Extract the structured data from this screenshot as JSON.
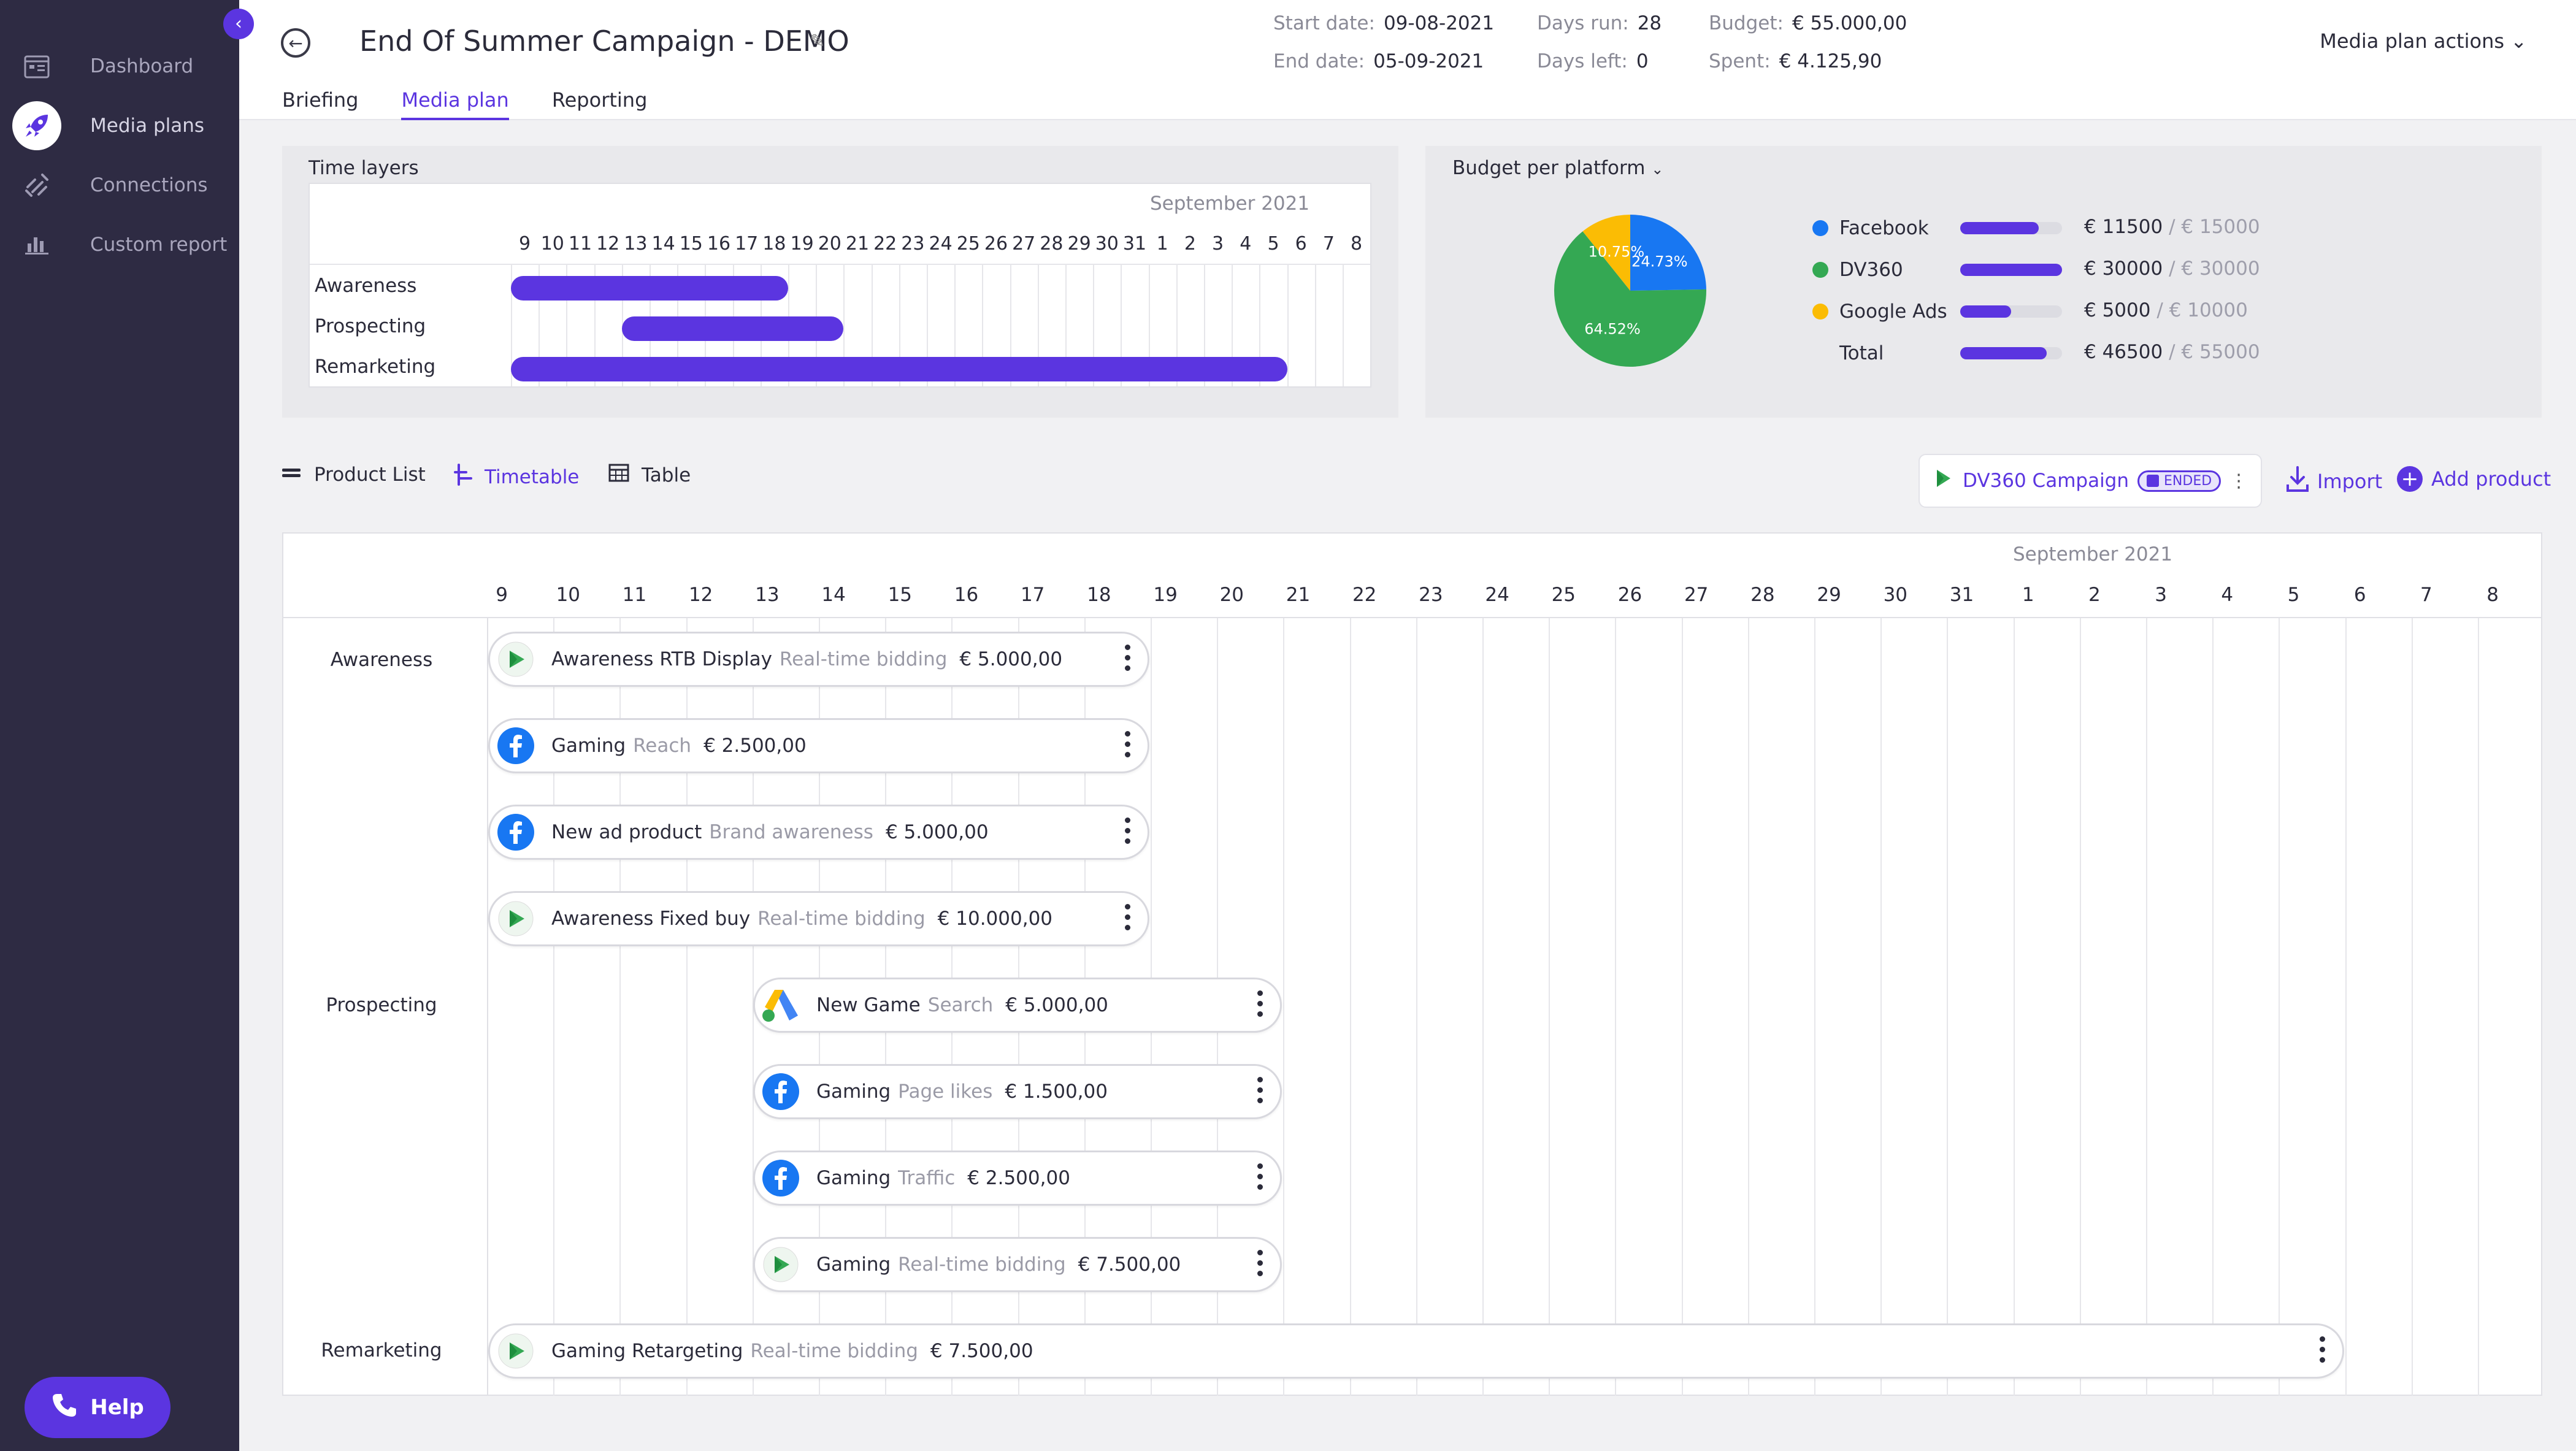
{
  "sidebar": {
    "items": [
      {
        "label": "Dashboard",
        "icon": "dashboard-icon"
      },
      {
        "label": "Media plans",
        "icon": "rocket-icon",
        "active": true
      },
      {
        "label": "Connections",
        "icon": "connections-icon"
      },
      {
        "label": "Custom report",
        "icon": "bar-chart-icon"
      }
    ],
    "help_label": "Help"
  },
  "header": {
    "title": "End Of Summer Campaign - DEMO",
    "start_date_label": "Start date:",
    "start_date": "09-08-2021",
    "end_date_label": "End date:",
    "end_date": "05-09-2021",
    "days_run_label": "Days run:",
    "days_run": "28",
    "days_left_label": "Days left:",
    "days_left": "0",
    "budget_label": "Budget:",
    "budget": "€ 55.000,00",
    "spent_label": "Spent:",
    "spent": "€ 4.125,90",
    "actions_label": "Media plan actions"
  },
  "tabs": [
    {
      "label": "Briefing"
    },
    {
      "label": "Media plan",
      "active": true
    },
    {
      "label": "Reporting"
    }
  ],
  "time_layers": {
    "title": "Time layers",
    "month": "September 2021",
    "days": [
      "9",
      "10",
      "11",
      "12",
      "13",
      "14",
      "15",
      "16",
      "17",
      "18",
      "19",
      "20",
      "21",
      "22",
      "23",
      "24",
      "25",
      "26",
      "27",
      "28",
      "29",
      "30",
      "31",
      "1",
      "2",
      "3",
      "4",
      "5",
      "6",
      "7",
      "8"
    ],
    "rows": [
      {
        "label": "Awareness",
        "start_index": 0,
        "end_index": 9
      },
      {
        "label": "Prospecting",
        "start_index": 4,
        "end_index": 11
      },
      {
        "label": "Remarketing",
        "start_index": 0,
        "end_index": 27
      }
    ]
  },
  "budget": {
    "title": "Budget per platform",
    "rows": [
      {
        "name": "Facebook",
        "color": "#1877f2",
        "value": "€ 11500",
        "max": "/ € 15000",
        "fraction": 0.77
      },
      {
        "name": "DV360",
        "color": "#34a853",
        "value": "€ 30000",
        "max": "/ € 30000",
        "fraction": 1.0
      },
      {
        "name": "Google Ads",
        "color": "#fbbc04",
        "value": "€ 5000",
        "max": "/ € 10000",
        "fraction": 0.5
      },
      {
        "name": "Total",
        "color": "",
        "value": "€ 46500",
        "max": "/ € 55000",
        "fraction": 0.85
      }
    ]
  },
  "chart_data": {
    "type": "pie",
    "categories": [
      "Facebook",
      "DV360",
      "Google Ads"
    ],
    "values": [
      24.73,
      64.52,
      10.75
    ],
    "labels": [
      "24.73%",
      "64.52%",
      "10.75%"
    ],
    "colors": [
      "#1877f2",
      "#34a853",
      "#fbbc04"
    ]
  },
  "view_tabs": {
    "product_list": "Product List",
    "timetable": "Timetable",
    "table": "Table"
  },
  "campaign_pill": {
    "label": "DV360 Campaign",
    "status": "ENDED"
  },
  "import_label": "Import",
  "add_product_label": "Add product",
  "timetable": {
    "month": "September 2021",
    "days": [
      "9",
      "10",
      "11",
      "12",
      "13",
      "14",
      "15",
      "16",
      "17",
      "18",
      "19",
      "20",
      "21",
      "22",
      "23",
      "24",
      "25",
      "26",
      "27",
      "28",
      "29",
      "30",
      "31",
      "1",
      "2",
      "3",
      "4",
      "5",
      "6",
      "7",
      "8"
    ],
    "groups": [
      {
        "label": "Awareness"
      },
      {
        "label": "Prospecting"
      },
      {
        "label": "Remarketing"
      }
    ],
    "products": [
      {
        "name": "Awareness RTB Display",
        "type": "Real-time bidding",
        "price": "€ 5.000,00",
        "platform": "dv360"
      },
      {
        "name": "Gaming",
        "type": "Reach",
        "price": "€ 2.500,00",
        "platform": "facebook"
      },
      {
        "name": "New ad product",
        "type": "Brand awareness",
        "price": "€ 5.000,00",
        "platform": "facebook"
      },
      {
        "name": "Awareness Fixed buy",
        "type": "Real-time bidding",
        "price": "€ 10.000,00",
        "platform": "dv360"
      },
      {
        "name": "New Game",
        "type": "Search",
        "price": "€ 5.000,00",
        "platform": "google-ads"
      },
      {
        "name": "Gaming",
        "type": "Page likes",
        "price": "€ 1.500,00",
        "platform": "facebook"
      },
      {
        "name": "Gaming",
        "type": "Traffic",
        "price": "€ 2.500,00",
        "platform": "facebook"
      },
      {
        "name": "Gaming",
        "type": "Real-time bidding",
        "price": "€ 7.500,00",
        "platform": "dv360"
      },
      {
        "name": "Gaming Retargeting",
        "type": "Real-time bidding",
        "price": "€ 7.500,00",
        "platform": "dv360"
      }
    ]
  }
}
